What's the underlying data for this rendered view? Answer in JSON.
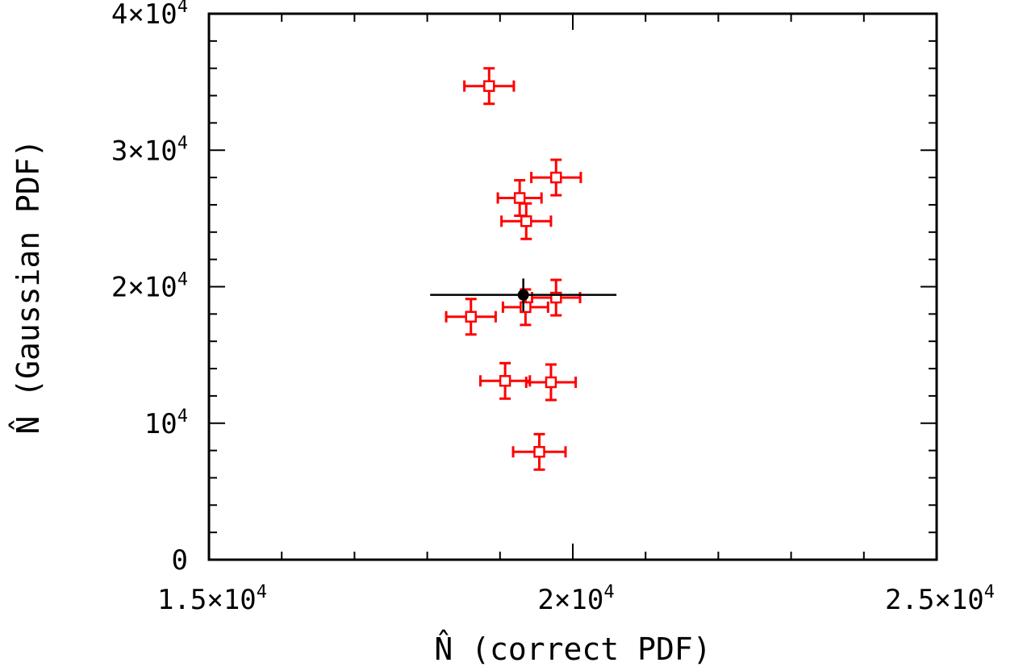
{
  "chart_data": {
    "type": "scatter",
    "title": "",
    "xlabel": "N̂ (correct PDF)",
    "ylabel": "N̂ (Gaussian PDF)",
    "xlim": [
      15000,
      25000
    ],
    "ylim": [
      0,
      40000
    ],
    "x_ticks": [
      {
        "value": 15000,
        "mantissa": "1.5×10",
        "exp": "4"
      },
      {
        "value": 20000,
        "mantissa": "2×10",
        "exp": "4"
      },
      {
        "value": 25000,
        "mantissa": "2.5×10",
        "exp": "4"
      }
    ],
    "y_ticks": [
      {
        "value": 0,
        "mantissa": "0",
        "exp": ""
      },
      {
        "value": 10000,
        "mantissa": "10",
        "exp": "4"
      },
      {
        "value": 20000,
        "mantissa": "2×10",
        "exp": "4"
      },
      {
        "value": 30000,
        "mantissa": "3×10",
        "exp": "4"
      },
      {
        "value": 40000,
        "mantissa": "4×10",
        "exp": "4"
      }
    ],
    "x_minor_step": 1000,
    "y_minor_step": 2000,
    "grid": false,
    "legend": "none",
    "series": [
      {
        "color": "#ff0000",
        "marker": "open-square",
        "points": [
          {
            "x": 18850,
            "y": 34700,
            "xerr": 340,
            "yerr": 1300
          },
          {
            "x": 19770,
            "y": 28000,
            "xerr": 340,
            "yerr": 1300
          },
          {
            "x": 19270,
            "y": 26500,
            "xerr": 300,
            "yerr": 1300
          },
          {
            "x": 19360,
            "y": 24800,
            "xerr": 340,
            "yerr": 1300
          },
          {
            "x": 19770,
            "y": 19200,
            "xerr": 330,
            "yerr": 1300
          },
          {
            "x": 19350,
            "y": 18500,
            "xerr": 310,
            "yerr": 1300
          },
          {
            "x": 18600,
            "y": 17800,
            "xerr": 340,
            "yerr": 1300
          },
          {
            "x": 19070,
            "y": 13100,
            "xerr": 340,
            "yerr": 1300
          },
          {
            "x": 19700,
            "y": 13000,
            "xerr": 340,
            "yerr": 1300
          },
          {
            "x": 19540,
            "y": 7900,
            "xerr": 360,
            "yerr": 1300
          }
        ]
      },
      {
        "color": "#000000",
        "marker": "filled-circle",
        "points": [
          {
            "x": 19320,
            "y": 19400,
            "xerr": 1280,
            "yerr": 1200
          }
        ]
      }
    ]
  }
}
